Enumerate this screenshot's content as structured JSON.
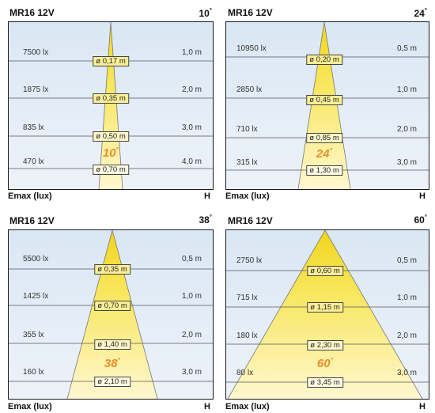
{
  "panels": [
    {
      "title": "MR16 12V",
      "angle": "10",
      "beam_label": "10",
      "emax_label": "Emax (lux)",
      "h_label": "H",
      "rows": [
        {
          "lux": "7500 lx",
          "diameter": "ø 0,17 m",
          "distance": "1,0 m"
        },
        {
          "lux": "1875 lx",
          "diameter": "ø 0,35 m",
          "distance": "2,0 m"
        },
        {
          "lux": "835 lx",
          "diameter": "ø 0,50 m",
          "distance": "3,0 m"
        },
        {
          "lux": "470 lx",
          "diameter": "ø 0,70 m",
          "distance": "4,0 m"
        }
      ]
    },
    {
      "title": "MR16 12V",
      "angle": "24",
      "beam_label": "24",
      "emax_label": "Emax (lux)",
      "h_label": "H",
      "rows": [
        {
          "lux": "10950 lx",
          "diameter": "ø 0,20 m",
          "distance": "0,5 m"
        },
        {
          "lux": "2850 lx",
          "diameter": "ø 0,45 m",
          "distance": "1,0 m"
        },
        {
          "lux": "710 lx",
          "diameter": "ø 0,85 m",
          "distance": "2,0 m"
        },
        {
          "lux": "315 lx",
          "diameter": "ø 1,30 m",
          "distance": "3,0 m"
        }
      ]
    },
    {
      "title": "MR16 12V",
      "angle": "38",
      "beam_label": "38",
      "emax_label": "Emax (lux)",
      "h_label": "H",
      "rows": [
        {
          "lux": "5500 lx",
          "diameter": "ø 0,35 m",
          "distance": "0,5 m"
        },
        {
          "lux": "1425 lx",
          "diameter": "ø 0,70 m",
          "distance": "1,0 m"
        },
        {
          "lux": "355 lx",
          "diameter": "ø 1,40 m",
          "distance": "2,0 m"
        },
        {
          "lux": "160 lx",
          "diameter": "ø 2,10 m",
          "distance": "3,0 m"
        }
      ]
    },
    {
      "title": "MR16 12V",
      "angle": "60",
      "beam_label": "60",
      "emax_label": "Emax (lux)",
      "h_label": "H",
      "rows": [
        {
          "lux": "2750 lx",
          "diameter": "ø 0,60 m",
          "distance": "0,5 m"
        },
        {
          "lux": "715 lx",
          "diameter": "ø 1,15 m",
          "distance": "1,0 m"
        },
        {
          "lux": "180 lx",
          "diameter": "ø 2,30 m",
          "distance": "2,0 m"
        },
        {
          "lux": "80 lx",
          "diameter": "ø 3,45 m",
          "distance": "3,0 m"
        }
      ]
    }
  ],
  "colors": {
    "beam_light": "#fff6c2",
    "beam_mid": "#f7e65a",
    "beam_apex": "#f2d51c",
    "angle_text": "#e8902a",
    "box_bg": "#dfeaf5",
    "label_box_bg": "#fbef96"
  }
}
